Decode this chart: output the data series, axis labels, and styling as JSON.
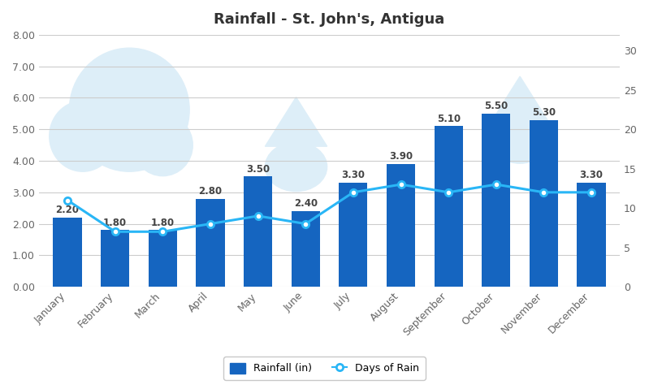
{
  "title": "Rainfall - St. John's, Antigua",
  "months": [
    "January",
    "February",
    "March",
    "April",
    "May",
    "June",
    "July",
    "August",
    "September",
    "October",
    "November",
    "December"
  ],
  "rainfall": [
    2.2,
    1.8,
    1.8,
    2.8,
    3.5,
    2.4,
    3.3,
    3.9,
    5.1,
    5.5,
    5.3,
    3.3
  ],
  "days_of_rain": [
    11,
    7,
    7,
    8,
    9,
    8,
    12,
    13,
    12,
    13,
    12,
    12
  ],
  "bar_color": "#1565C0",
  "line_color": "#29B6F6",
  "bar_width": 0.6,
  "ylim_left": [
    0,
    8.0
  ],
  "ylim_right": [
    0,
    32
  ],
  "yticks_left": [
    0.0,
    1.0,
    2.0,
    3.0,
    4.0,
    5.0,
    6.0,
    7.0,
    8.0
  ],
  "ytick_labels_left": [
    "0.00",
    "1.00",
    "2.00",
    "3.00",
    "4.00",
    "5.00",
    "6.00",
    "7.00",
    "8.00"
  ],
  "yticks_right": [
    0,
    5,
    10,
    15,
    20,
    25,
    30
  ],
  "grid_color": "#cccccc",
  "background_color": "#ffffff",
  "watermark_color": "#ddeef8",
  "legend_label_bar": "Rainfall (in)",
  "legend_label_line": "Days of Rain",
  "title_fontsize": 13,
  "tick_fontsize": 9,
  "label_fontsize": 8.5
}
